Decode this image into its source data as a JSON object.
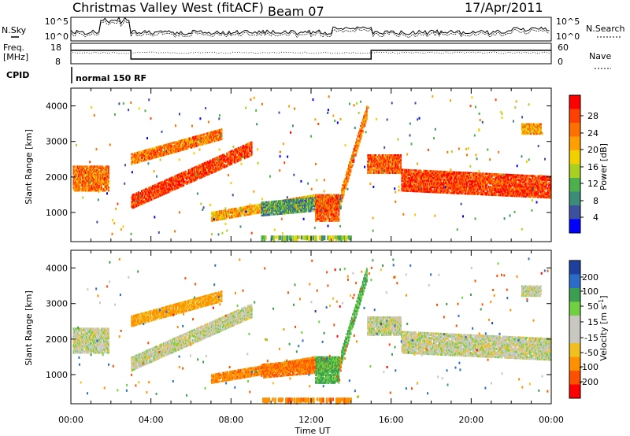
{
  "header": {
    "station": "Christmas Valley West (fitACF)",
    "beam": "Beam 07",
    "date": "17/Apr/2011"
  },
  "strip": {
    "nsky_label": "N.Sky",
    "nsearch_label": "N.Search",
    "freq_label_1": "Freq.",
    "freq_label_2": "[MHz]",
    "nave_label": "Nave",
    "cpid_label": "CPID",
    "cpid_value": "normal 150 RF",
    "noise_ticks_left": [
      "10^5",
      "10^0"
    ],
    "noise_ticks_right": [
      "10^5",
      "10^0"
    ],
    "freq_ticks": [
      "18",
      "8"
    ],
    "nave_ticks": [
      "60",
      "0"
    ]
  },
  "power_colorbar": {
    "label": "Power [dB]",
    "ticks": [
      "28",
      "24",
      "20",
      "16",
      "12",
      "8",
      "4"
    ],
    "colors": [
      "#ff0000",
      "#ff4000",
      "#ff7000",
      "#ffa000",
      "#f2d000",
      "#a8d020",
      "#4cb04c",
      "#3c8c78",
      "#3c50a0",
      "#0000ff"
    ]
  },
  "velocity_colorbar": {
    "label": "Velocity [m s",
    "label_sup": "-1",
    "label_end": "]",
    "ticks": [
      "200",
      "100",
      "50",
      "15",
      "-15",
      "-50",
      "-100",
      "-200"
    ],
    "colors": [
      "#2040a0",
      "#2c6cc8",
      "#3aa050",
      "#70d040",
      "#c8c8c0",
      "#c8c8c0",
      "#f0c020",
      "#ff9000",
      "#ff5000",
      "#ff0000"
    ]
  },
  "chart_data": [
    {
      "type": "heatmap",
      "name": "power",
      "xlabel": "Time UT",
      "ylabel": "Slant Range [km]",
      "x_ticks": [
        "00:00",
        "04:00",
        "08:00",
        "12:00",
        "16:00",
        "20:00",
        "00:00"
      ],
      "xlim_hours": [
        0,
        24
      ],
      "ylim_km": [
        180,
        4500
      ],
      "y_ticks": [
        1000,
        2000,
        3000,
        4000
      ],
      "bands": [
        {
          "t0": 0.1,
          "t1": 1.9,
          "r0": 1600,
          "r1": 2300,
          "level": 0.75
        },
        {
          "t0": 3.0,
          "t1": 9.0,
          "r0": 1100,
          "r1": 1500,
          "rise": 1500,
          "level": 0.85
        },
        {
          "t0": 3.0,
          "t1": 7.5,
          "r0": 2350,
          "r1": 2650,
          "rise": 700,
          "level": 0.75
        },
        {
          "t0": 7.0,
          "t1": 12.2,
          "r0": 750,
          "r1": 1000,
          "rise": 500,
          "level": 0.65
        },
        {
          "t0": 9.5,
          "t1": 13.5,
          "r0": 900,
          "r1": 1300,
          "rise": 200,
          "level": 0.3
        },
        {
          "t0": 12.2,
          "t1": 13.4,
          "r0": 750,
          "r1": 1500,
          "rise": 0,
          "level": 0.8
        },
        {
          "t0": 13.5,
          "t1": 14.8,
          "r0": 1300,
          "r1": 1700,
          "rise": 2400,
          "level": 0.75
        },
        {
          "t0": 14.8,
          "t1": 16.5,
          "r0": 2100,
          "r1": 2600,
          "rise": 0,
          "level": 0.8
        },
        {
          "t0": 16.5,
          "t1": 24.0,
          "r0": 1600,
          "r1": 2200,
          "rise": -200,
          "level": 0.85
        },
        {
          "t0": 22.5,
          "t1": 23.5,
          "r0": 3200,
          "r1": 3500,
          "rise": 0,
          "level": 0.65
        }
      ]
    },
    {
      "type": "heatmap",
      "name": "velocity",
      "xlabel": "Time UT",
      "ylabel": "Slant Range [km]",
      "x_ticks": [
        "00:00",
        "04:00",
        "08:00",
        "12:00",
        "16:00",
        "20:00",
        "00:00"
      ],
      "xlim_hours": [
        0,
        24
      ],
      "ylim_km": [
        180,
        4500
      ],
      "y_ticks": [
        1000,
        2000,
        3000,
        4000
      ],
      "bands": [
        {
          "t0": 0.1,
          "t1": 1.9,
          "r0": 1600,
          "r1": 2300,
          "vel": 0
        },
        {
          "t0": 3.0,
          "t1": 9.0,
          "r0": 1100,
          "r1": 1500,
          "rise": 1500,
          "vel": 0
        },
        {
          "t0": 3.0,
          "t1": 7.5,
          "r0": 2350,
          "r1": 2650,
          "rise": 700,
          "vel": -40
        },
        {
          "t0": 7.0,
          "t1": 12.2,
          "r0": 750,
          "r1": 1000,
          "rise": 500,
          "vel": -60
        },
        {
          "t0": 9.5,
          "t1": 13.5,
          "r0": 900,
          "r1": 1300,
          "rise": 200,
          "vel": -70
        },
        {
          "t0": 12.2,
          "t1": 13.4,
          "r0": 750,
          "r1": 1500,
          "rise": 0,
          "vel": 40
        },
        {
          "t0": 13.5,
          "t1": 14.8,
          "r0": 1300,
          "r1": 1700,
          "rise": 2400,
          "vel": 40
        },
        {
          "t0": 14.8,
          "t1": 16.5,
          "r0": 2100,
          "r1": 2600,
          "rise": 0,
          "vel": 0
        },
        {
          "t0": 16.5,
          "t1": 24.0,
          "r0": 1600,
          "r1": 2200,
          "rise": -200,
          "vel": 0
        },
        {
          "t0": 22.5,
          "t1": 23.5,
          "r0": 3200,
          "r1": 3500,
          "rise": 0,
          "vel": 0
        }
      ]
    }
  ]
}
